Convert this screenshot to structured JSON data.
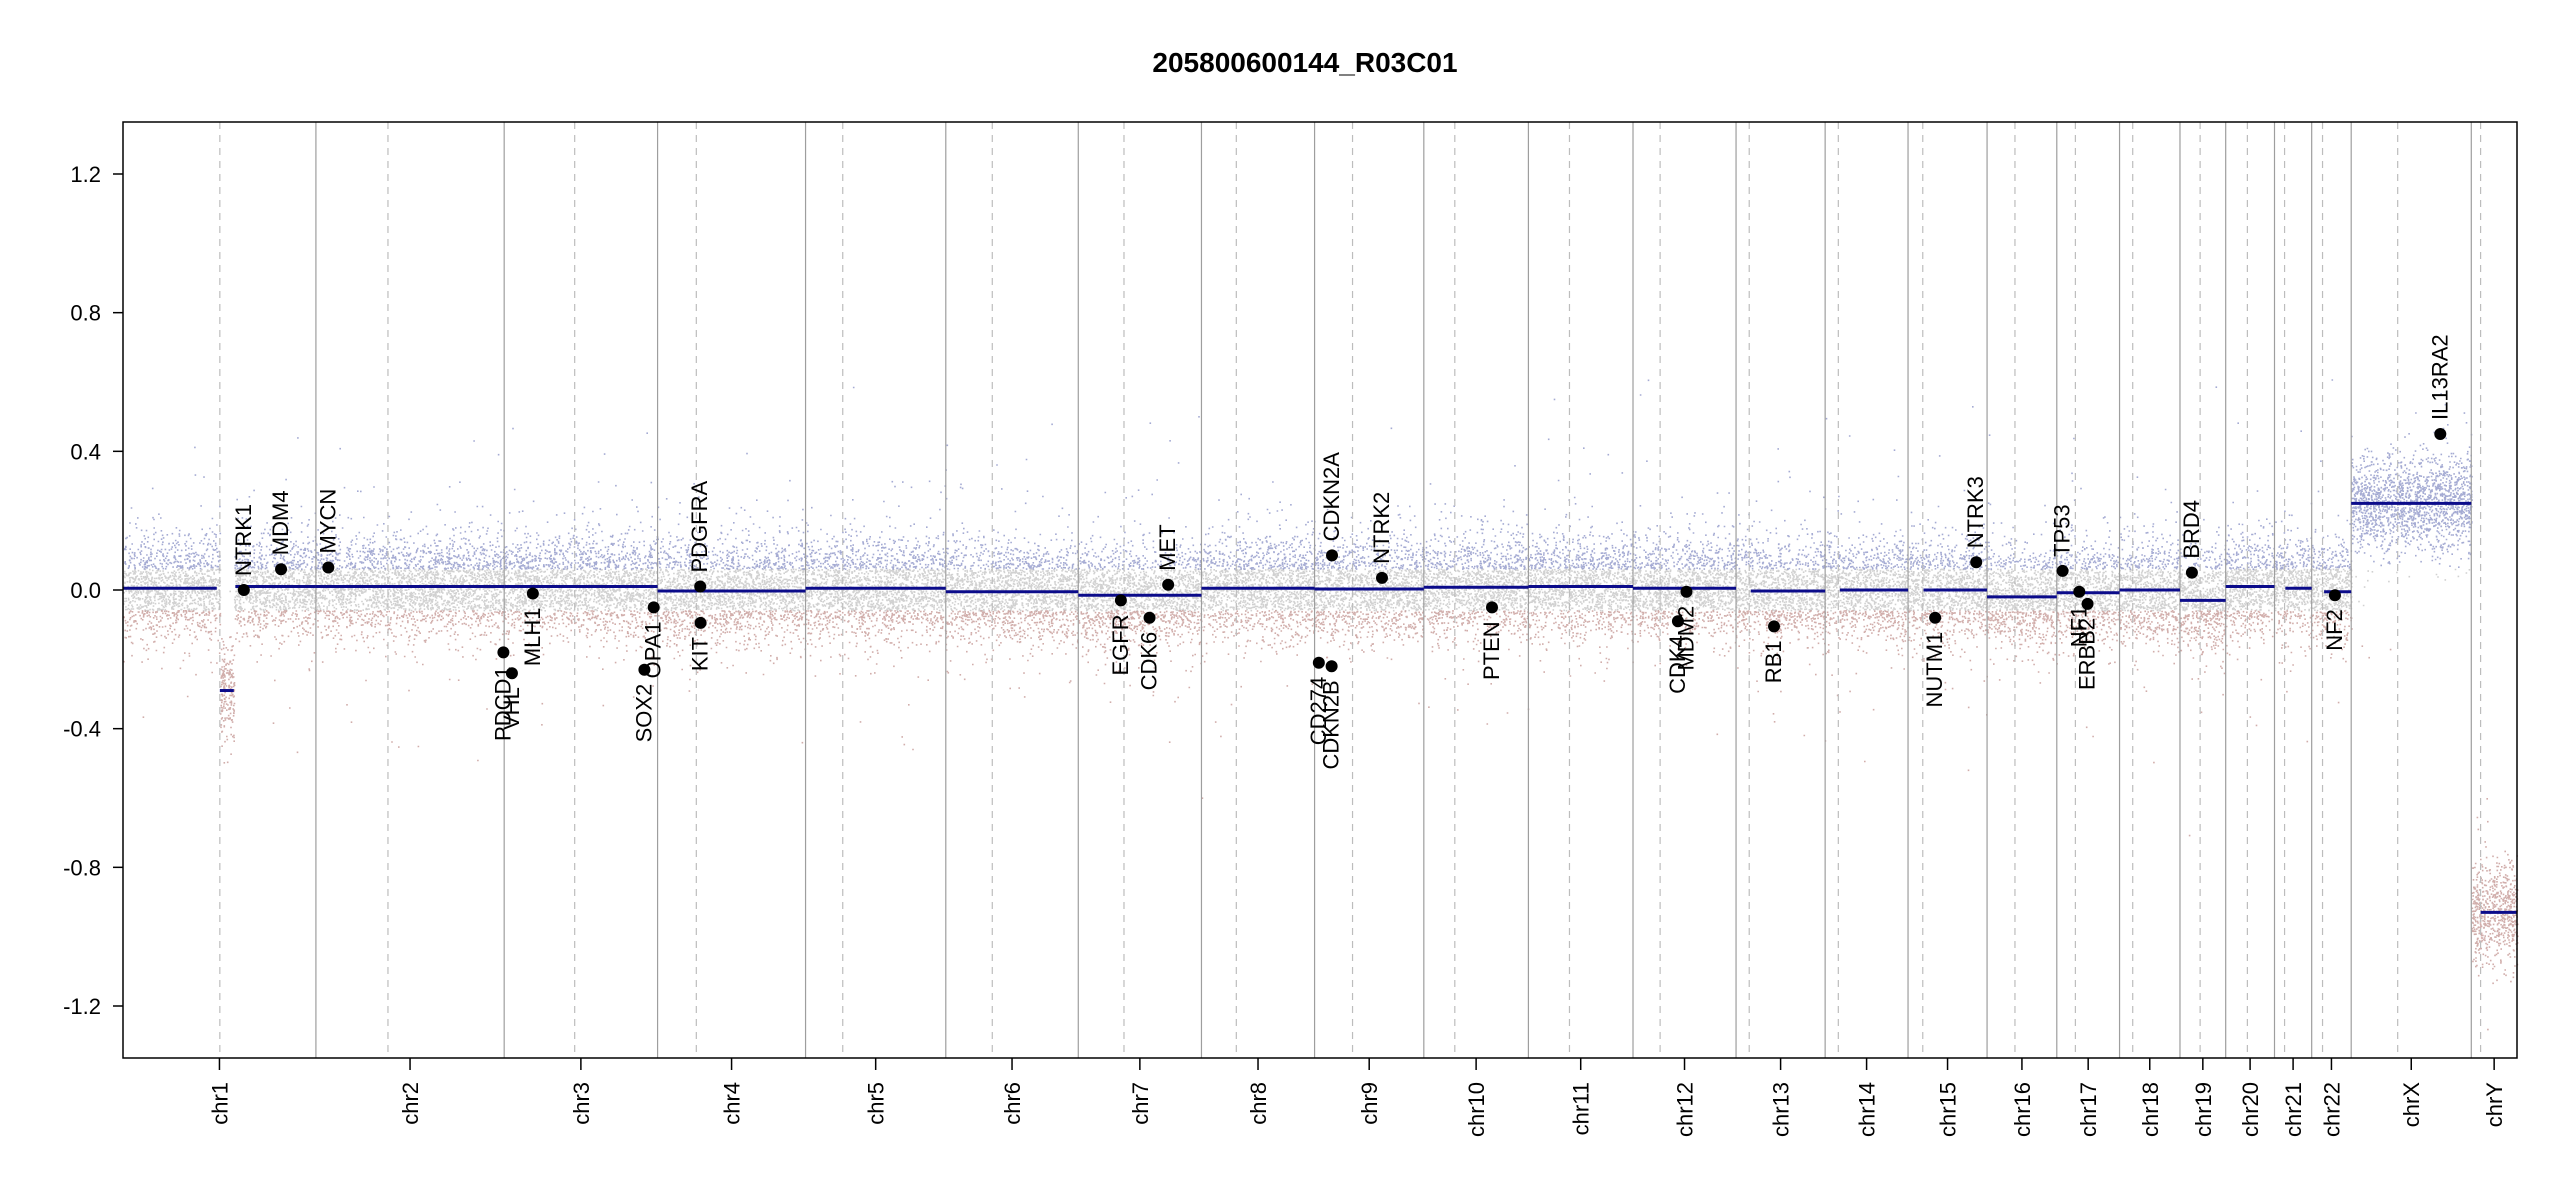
{
  "chart_data": {
    "type": "scatter",
    "title": "205800600144_R03C01",
    "xlabel": "",
    "ylabel": "",
    "ylim": [
      -1.35,
      1.35
    ],
    "yticks": [
      -1.2,
      -0.8,
      -0.4,
      0.0,
      0.4,
      0.8,
      1.2
    ],
    "ytick_labels": [
      "-1.2",
      "-0.8",
      "-0.4",
      "0.0",
      "0.4",
      "0.8",
      "1.2"
    ],
    "colors": {
      "segment": "#0b0b8a",
      "gain_points": "#8f96c8",
      "loss_points": "#c69a96",
      "neutral_points": "#bdbdbd",
      "chrom_border": "#9e9e9e",
      "centromere": "#bdbdbd",
      "gene_point": "#000000"
    },
    "chromosomes": [
      {
        "name": "chr1",
        "length": 249,
        "centromere": 125,
        "segments": [
          {
            "start": 0,
            "end": 121,
            "value": 0.005
          },
          {
            "start": 125,
            "end": 143,
            "value": -0.29
          },
          {
            "start": 145,
            "end": 249,
            "value": 0.01
          }
        ]
      },
      {
        "name": "chr2",
        "length": 243,
        "centromere": 93,
        "segments": [
          {
            "start": 0,
            "end": 243,
            "value": 0.01
          }
        ]
      },
      {
        "name": "chr3",
        "length": 198,
        "centromere": 91,
        "segments": [
          {
            "start": 0,
            "end": 198,
            "value": 0.01
          }
        ]
      },
      {
        "name": "chr4",
        "length": 191,
        "centromere": 50,
        "segments": [
          {
            "start": 0,
            "end": 191,
            "value": -0.003
          }
        ]
      },
      {
        "name": "chr5",
        "length": 181,
        "centromere": 48,
        "segments": [
          {
            "start": 0,
            "end": 181,
            "value": 0.005
          }
        ]
      },
      {
        "name": "chr6",
        "length": 171,
        "centromere": 60,
        "segments": [
          {
            "start": 0,
            "end": 171,
            "value": -0.005
          }
        ]
      },
      {
        "name": "chr7",
        "length": 159,
        "centromere": 59,
        "segments": [
          {
            "start": 0,
            "end": 159,
            "value": -0.015
          }
        ]
      },
      {
        "name": "chr8",
        "length": 146,
        "centromere": 45,
        "segments": [
          {
            "start": 0,
            "end": 146,
            "value": 0.005
          }
        ]
      },
      {
        "name": "chr9",
        "length": 141,
        "centromere": 49,
        "segments": [
          {
            "start": 0,
            "end": 141,
            "value": 0.003
          }
        ]
      },
      {
        "name": "chr10",
        "length": 135,
        "centromere": 40,
        "segments": [
          {
            "start": 0,
            "end": 135,
            "value": 0.008
          }
        ]
      },
      {
        "name": "chr11",
        "length": 135,
        "centromere": 53,
        "segments": [
          {
            "start": 0,
            "end": 135,
            "value": 0.01
          }
        ]
      },
      {
        "name": "chr12",
        "length": 133,
        "centromere": 35,
        "segments": [
          {
            "start": 0,
            "end": 133,
            "value": 0.005
          }
        ]
      },
      {
        "name": "chr13",
        "length": 115,
        "centromere": 17,
        "segments": [
          {
            "start": 19,
            "end": 115,
            "value": -0.003
          }
        ]
      },
      {
        "name": "chr14",
        "length": 107,
        "centromere": 17,
        "segments": [
          {
            "start": 19,
            "end": 107,
            "value": 0.0
          }
        ]
      },
      {
        "name": "chr15",
        "length": 102,
        "centromere": 19,
        "segments": [
          {
            "start": 20,
            "end": 102,
            "value": 0.0
          }
        ]
      },
      {
        "name": "chr16",
        "length": 90,
        "centromere": 36,
        "segments": [
          {
            "start": 0,
            "end": 90,
            "value": -0.02
          }
        ]
      },
      {
        "name": "chr17",
        "length": 81,
        "centromere": 24,
        "segments": [
          {
            "start": 0,
            "end": 81,
            "value": -0.008
          }
        ]
      },
      {
        "name": "chr18",
        "length": 78,
        "centromere": 17,
        "segments": [
          {
            "start": 0,
            "end": 78,
            "value": 0.0
          }
        ]
      },
      {
        "name": "chr19",
        "length": 59,
        "centromere": 26,
        "segments": [
          {
            "start": 0,
            "end": 59,
            "value": -0.03
          }
        ]
      },
      {
        "name": "chr20",
        "length": 63,
        "centromere": 28,
        "segments": [
          {
            "start": 0,
            "end": 63,
            "value": 0.01
          }
        ]
      },
      {
        "name": "chr21",
        "length": 48,
        "centromere": 13,
        "segments": [
          {
            "start": 14,
            "end": 48,
            "value": 0.005
          }
        ]
      },
      {
        "name": "chr22",
        "length": 51,
        "centromere": 14,
        "segments": [
          {
            "start": 16,
            "end": 51,
            "value": -0.005
          }
        ]
      },
      {
        "name": "chrX",
        "length": 155,
        "centromere": 60,
        "segments": [
          {
            "start": 0,
            "end": 155,
            "value": 0.25
          }
        ]
      },
      {
        "name": "chrY",
        "length": 59,
        "centromere": 12,
        "segments": [
          {
            "start": 12,
            "end": 59,
            "value": -0.93
          }
        ]
      }
    ],
    "genes": [
      {
        "name": "NTRK1",
        "chrom": "chr1",
        "pos": 156,
        "value": 0.0,
        "label": "above"
      },
      {
        "name": "MDM4",
        "chrom": "chr1",
        "pos": 204,
        "value": 0.06,
        "label": "above"
      },
      {
        "name": "MYCN",
        "chrom": "chr2",
        "pos": 16,
        "value": 0.065,
        "label": "above"
      },
      {
        "name": "PDCD1",
        "chrom": "chr2",
        "pos": 242,
        "value": -0.18,
        "label": "below"
      },
      {
        "name": "VHL",
        "chrom": "chr3",
        "pos": 10,
        "value": -0.24,
        "label": "below"
      },
      {
        "name": "MLH1",
        "chrom": "chr3",
        "pos": 37,
        "value": -0.01,
        "label": "below"
      },
      {
        "name": "SOX2",
        "chrom": "chr3",
        "pos": 181,
        "value": -0.23,
        "label": "below"
      },
      {
        "name": "OPA1",
        "chrom": "chr3",
        "pos": 193,
        "value": -0.05,
        "label": "below"
      },
      {
        "name": "PDGFRA",
        "chrom": "chr4",
        "pos": 55,
        "value": 0.01,
        "label": "above"
      },
      {
        "name": "KIT",
        "chrom": "chr4",
        "pos": 55.5,
        "value": -0.095,
        "label": "below"
      },
      {
        "name": "EGFR",
        "chrom": "chr7",
        "pos": 55,
        "value": -0.03,
        "label": "below"
      },
      {
        "name": "CDK6",
        "chrom": "chr7",
        "pos": 92,
        "value": -0.08,
        "label": "below"
      },
      {
        "name": "MET",
        "chrom": "chr7",
        "pos": 116,
        "value": 0.015,
        "label": "above"
      },
      {
        "name": "CD274",
        "chrom": "chr9",
        "pos": 5.5,
        "value": -0.21,
        "label": "below"
      },
      {
        "name": "CDKN2B",
        "chrom": "chr9",
        "pos": 22,
        "value": -0.22,
        "label": "below"
      },
      {
        "name": "CDKN2A",
        "chrom": "chr9",
        "pos": 22.5,
        "value": 0.1,
        "label": "above"
      },
      {
        "name": "NTRK2",
        "chrom": "chr9",
        "pos": 87,
        "value": 0.035,
        "label": "above"
      },
      {
        "name": "PTEN",
        "chrom": "chr10",
        "pos": 88,
        "value": -0.05,
        "label": "below"
      },
      {
        "name": "CDK4",
        "chrom": "chr12",
        "pos": 58,
        "value": -0.09,
        "label": "below"
      },
      {
        "name": "MDM2",
        "chrom": "chr12",
        "pos": 69,
        "value": -0.005,
        "label": "below"
      },
      {
        "name": "RB1",
        "chrom": "chr13",
        "pos": 49,
        "value": -0.105,
        "label": "below"
      },
      {
        "name": "NUTM1",
        "chrom": "chr15",
        "pos": 35,
        "value": -0.08,
        "label": "below"
      },
      {
        "name": "NTRK3",
        "chrom": "chr15",
        "pos": 88,
        "value": 0.08,
        "label": "above"
      },
      {
        "name": "TP53",
        "chrom": "chr17",
        "pos": 7.5,
        "value": 0.055,
        "label": "above"
      },
      {
        "name": "NF1",
        "chrom": "chr17",
        "pos": 29,
        "value": -0.005,
        "label": "below"
      },
      {
        "name": "ERBB2",
        "chrom": "chr17",
        "pos": 39.7,
        "value": -0.04,
        "label": "below"
      },
      {
        "name": "BRD4",
        "chrom": "chr19",
        "pos": 15.4,
        "value": 0.05,
        "label": "above"
      },
      {
        "name": "NF2",
        "chrom": "chr22",
        "pos": 30,
        "value": -0.015,
        "label": "below"
      },
      {
        "name": "IL13RA2",
        "chrom": "chrX",
        "pos": 115,
        "value": 0.45,
        "label": "above"
      }
    ]
  }
}
